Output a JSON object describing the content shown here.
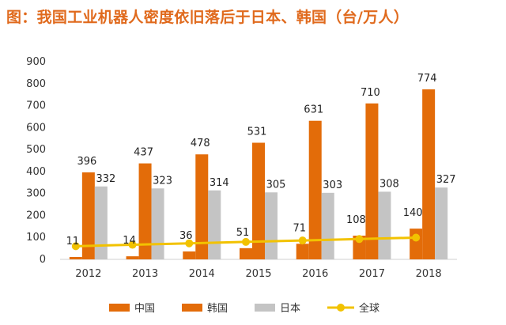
{
  "chart_data": {
    "type": "bar",
    "title": "图：我国工业机器人密度依旧落后于日本、韩国（台/万人）",
    "categories": [
      "2012",
      "2013",
      "2014",
      "2015",
      "2016",
      "2017",
      "2018"
    ],
    "series": [
      {
        "name": "中国",
        "type": "bar",
        "color": "#e36c09",
        "values": [
          11,
          14,
          36,
          51,
          71,
          108,
          140
        ]
      },
      {
        "name": "韩国",
        "type": "bar",
        "color": "#e36c09",
        "values": [
          396,
          437,
          478,
          531,
          631,
          710,
          774
        ]
      },
      {
        "name": "日本",
        "type": "bar",
        "color": "#c4c4c4",
        "values": [
          332,
          323,
          314,
          305,
          303,
          308,
          327
        ]
      },
      {
        "name": "全球",
        "type": "line",
        "color": "#f2c200",
        "values": [
          null,
          null,
          null,
          null,
          null,
          null,
          null
        ]
      }
    ],
    "data_labels": [
      {
        "series": "中国",
        "values": [
          "11",
          "14",
          "36",
          "51",
          "71",
          "108",
          "140"
        ]
      },
      {
        "series": "韩国",
        "values": [
          "396",
          "437",
          "478",
          "531",
          "631",
          "710",
          "774"
        ]
      },
      {
        "series": "日本",
        "values": [
          "332",
          "323",
          "314",
          "305",
          "303",
          "308",
          "327"
        ]
      }
    ],
    "yticks": [
      "0",
      "100",
      "200",
      "300",
      "400",
      "500",
      "600",
      "700",
      "800",
      "900"
    ],
    "ylim": [
      0,
      900
    ],
    "grid": false,
    "legend": "bottom",
    "colors": {
      "orange": "#e36c09",
      "gray": "#c4c4c4",
      "yellow": "#f2c200",
      "title": "#e06a1d"
    }
  }
}
